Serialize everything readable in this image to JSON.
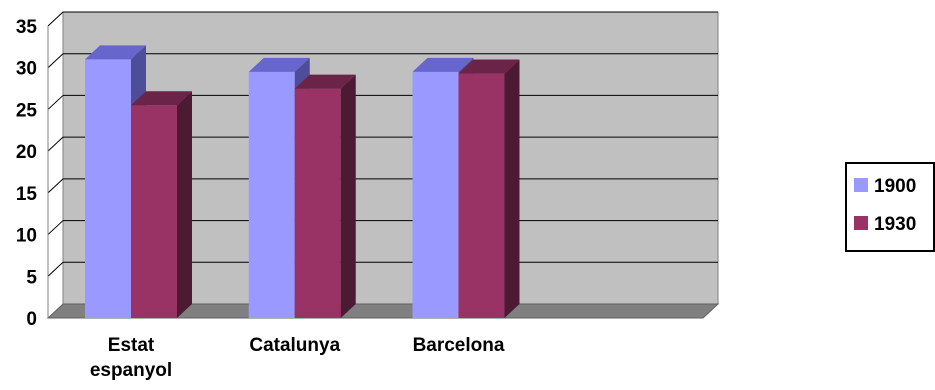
{
  "chart_data": {
    "type": "bar",
    "categories": [
      [
        "Estat",
        "espanyol"
      ],
      [
        "Catalunya"
      ],
      [
        "Barcelona"
      ],
      [
        ""
      ]
    ],
    "series": [
      {
        "name": "1900",
        "values": [
          31,
          29.5,
          29.5,
          null
        ]
      },
      {
        "name": "1930",
        "values": [
          25.5,
          27.5,
          29.3,
          null
        ]
      }
    ],
    "ylim": [
      0,
      35
    ],
    "yticks": [
      0,
      5,
      10,
      15,
      20,
      25,
      30,
      35
    ],
    "grid": true,
    "legend": "right",
    "colors": {
      "series": [
        "#9999ff",
        "#993366"
      ],
      "series_top": [
        "#6666cc",
        "#6b2347"
      ],
      "series_side": [
        "#4d4d99",
        "#4d1a33"
      ],
      "wall": "#c0c0c0",
      "floor": "#808080",
      "grid": "#000000"
    }
  }
}
